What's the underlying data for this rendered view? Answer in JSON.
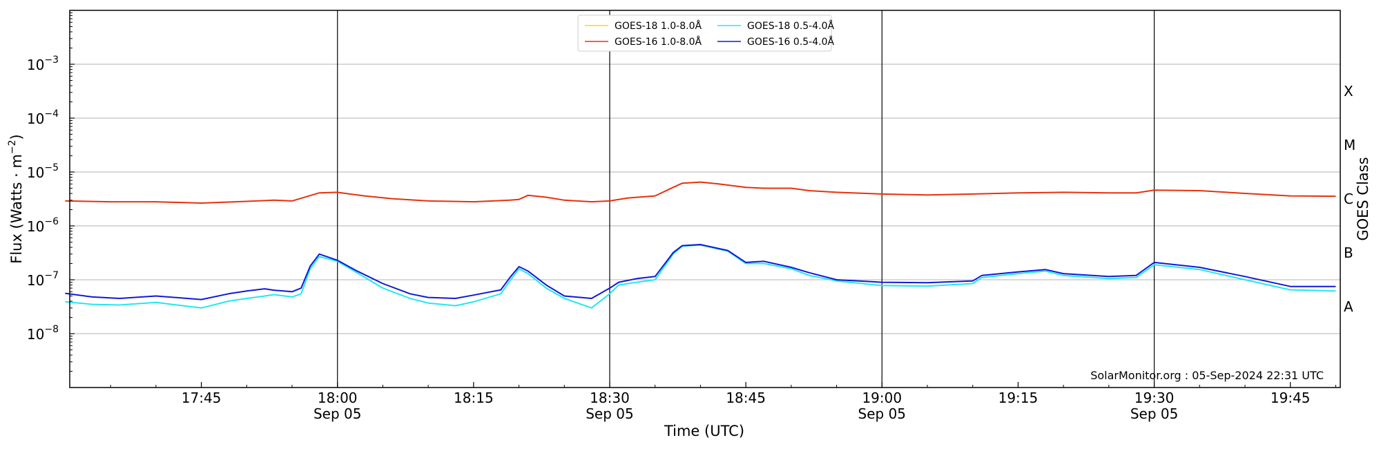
{
  "chart_data": {
    "type": "line",
    "title": "",
    "xlabel": "Time (UTC)",
    "ylabel": "Flux (Watts · m",
    "ylabel_sup": "−2",
    "ylabel_close": ")",
    "y2label": "GOES Class",
    "yscale": "log",
    "xlim": [
      "17:30:30",
      "19:50:30"
    ],
    "ylim": [
      1e-09,
      0.01
    ],
    "grid": "horizontal",
    "legend_position": "top-center",
    "x_ticks": [
      {
        "t": "17:45",
        "label": "17:45",
        "date": ""
      },
      {
        "t": "18:00",
        "label": "18:00",
        "date": "Sep 05",
        "vline": true
      },
      {
        "t": "18:15",
        "label": "18:15",
        "date": ""
      },
      {
        "t": "18:30",
        "label": "18:30",
        "date": "Sep 05",
        "vline": true
      },
      {
        "t": "18:45",
        "label": "18:45",
        "date": ""
      },
      {
        "t": "19:00",
        "label": "19:00",
        "date": "Sep 05",
        "vline": true
      },
      {
        "t": "19:15",
        "label": "19:15",
        "date": ""
      },
      {
        "t": "19:30",
        "label": "19:30",
        "date": "Sep 05",
        "vline": true
      },
      {
        "t": "19:45",
        "label": "19:45",
        "date": ""
      }
    ],
    "y_ticks": [
      {
        "exp": -8,
        "base": "10",
        "sup": "−8"
      },
      {
        "exp": -7,
        "base": "10",
        "sup": "−7"
      },
      {
        "exp": -6,
        "base": "10",
        "sup": "−6"
      },
      {
        "exp": -5,
        "base": "10",
        "sup": "−5"
      },
      {
        "exp": -4,
        "base": "10",
        "sup": "−4"
      },
      {
        "exp": -3,
        "base": "10",
        "sup": "−3"
      }
    ],
    "goes_classes": [
      {
        "label": "A",
        "exp": -7.5
      },
      {
        "label": "B",
        "exp": -6.5
      },
      {
        "label": "C",
        "exp": -5.5
      },
      {
        "label": "M",
        "exp": -4.5
      },
      {
        "label": "X",
        "exp": -3.5
      }
    ],
    "series": [
      {
        "name": "GOES-18 1.0-8.0Å",
        "color": "#ffd700",
        "x": [],
        "y": []
      },
      {
        "name": "GOES-16 1.0-8.0Å",
        "color": "#e8300a",
        "x": [
          "17:30",
          "17:35",
          "17:40",
          "17:45",
          "17:50",
          "17:53",
          "17:55",
          "17:58",
          "18:00",
          "18:03",
          "18:06",
          "18:10",
          "18:15",
          "18:19",
          "18:20",
          "18:21",
          "18:23",
          "18:25",
          "18:28",
          "18:30",
          "18:32",
          "18:35",
          "18:37",
          "18:38",
          "18:40",
          "18:42",
          "18:45",
          "18:47",
          "18:50",
          "18:52",
          "18:55",
          "19:00",
          "19:05",
          "19:10",
          "19:15",
          "19:20",
          "19:25",
          "19:28",
          "19:30",
          "19:35",
          "19:40",
          "19:45",
          "19:50"
        ],
        "y": [
          2.9e-06,
          2.8e-06,
          2.8e-06,
          2.65e-06,
          2.85e-06,
          3e-06,
          2.9e-06,
          4.1e-06,
          4.2e-06,
          3.6e-06,
          3.2e-06,
          2.9e-06,
          2.8e-06,
          3e-06,
          3.1e-06,
          3.7e-06,
          3.4e-06,
          3e-06,
          2.8e-06,
          2.9e-06,
          3.3e-06,
          3.6e-06,
          5.2e-06,
          6.2e-06,
          6.5e-06,
          6e-06,
          5.2e-06,
          5e-06,
          5e-06,
          4.5e-06,
          4.2e-06,
          3.9e-06,
          3.75e-06,
          3.9e-06,
          4.1e-06,
          4.2e-06,
          4.1e-06,
          4.1e-06,
          4.6e-06,
          4.5e-06,
          4e-06,
          3.6e-06,
          3.55e-06
        ]
      },
      {
        "name": "GOES-18 0.5-4.0Å",
        "color": "#20e8f0",
        "x": [
          "17:30",
          "17:33",
          "17:36",
          "17:40",
          "17:45",
          "17:48",
          "17:50",
          "17:52",
          "17:53",
          "17:55",
          "17:56",
          "17:57",
          "17:58",
          "18:00",
          "18:02",
          "18:05",
          "18:08",
          "18:10",
          "18:13",
          "18:15",
          "18:18",
          "18:19",
          "18:20",
          "18:21",
          "18:23",
          "18:25",
          "18:28",
          "18:30",
          "18:31",
          "18:33",
          "18:35",
          "18:37",
          "18:38",
          "18:40",
          "18:43",
          "18:45",
          "18:47",
          "18:50",
          "18:52",
          "18:55",
          "19:00",
          "19:05",
          "19:10",
          "19:11",
          "19:15",
          "19:18",
          "19:20",
          "19:25",
          "19:28",
          "19:30",
          "19:35",
          "19:40",
          "19:45",
          "19:50"
        ],
        "y": [
          3.9e-08,
          3.5e-08,
          3.4e-08,
          3.8e-08,
          3e-08,
          4e-08,
          4.5e-08,
          5e-08,
          5.3e-08,
          4.8e-08,
          5.5e-08,
          1.6e-07,
          2.7e-07,
          2.2e-07,
          1.4e-07,
          7e-08,
          4.5e-08,
          3.7e-08,
          3.3e-08,
          3.9e-08,
          5.5e-08,
          9.5e-08,
          1.6e-07,
          1.3e-07,
          7e-08,
          4.5e-08,
          3e-08,
          5.5e-08,
          8e-08,
          9e-08,
          1e-07,
          3e-07,
          4.2e-07,
          4.4e-07,
          3.4e-07,
          2e-07,
          2e-07,
          1.6e-07,
          1.2e-07,
          9.5e-08,
          7.8e-08,
          7.6e-08,
          8.5e-08,
          1.1e-07,
          1.3e-07,
          1.45e-07,
          1.2e-07,
          1.05e-07,
          1.1e-07,
          1.9e-07,
          1.55e-07,
          1e-07,
          6.5e-08,
          6.2e-08
        ]
      },
      {
        "name": "GOES-16 0.5-4.0Å",
        "color": "#1018d8",
        "x": [
          "17:30",
          "17:33",
          "17:36",
          "17:40",
          "17:45",
          "17:48",
          "17:50",
          "17:52",
          "17:53",
          "17:55",
          "17:56",
          "17:57",
          "17:58",
          "18:00",
          "18:02",
          "18:05",
          "18:08",
          "18:10",
          "18:13",
          "18:15",
          "18:18",
          "18:19",
          "18:20",
          "18:21",
          "18:23",
          "18:25",
          "18:28",
          "18:30",
          "18:31",
          "18:33",
          "18:35",
          "18:37",
          "18:38",
          "18:40",
          "18:43",
          "18:45",
          "18:47",
          "18:50",
          "18:52",
          "18:55",
          "19:00",
          "19:05",
          "19:10",
          "19:11",
          "19:15",
          "19:18",
          "19:20",
          "19:25",
          "19:28",
          "19:30",
          "19:35",
          "19:40",
          "19:45",
          "19:50"
        ],
        "y": [
          5.6e-08,
          4.8e-08,
          4.5e-08,
          5e-08,
          4.3e-08,
          5.5e-08,
          6.2e-08,
          6.8e-08,
          6.4e-08,
          6e-08,
          7e-08,
          1.8e-07,
          3e-07,
          2.3e-07,
          1.5e-07,
          8.5e-08,
          5.5e-08,
          4.7e-08,
          4.5e-08,
          5.2e-08,
          6.5e-08,
          1.1e-07,
          1.75e-07,
          1.45e-07,
          8e-08,
          5e-08,
          4.5e-08,
          7e-08,
          9e-08,
          1.05e-07,
          1.15e-07,
          3.2e-07,
          4.3e-07,
          4.5e-07,
          3.5e-07,
          2.1e-07,
          2.2e-07,
          1.7e-07,
          1.35e-07,
          1e-07,
          9e-08,
          8.8e-08,
          9.5e-08,
          1.2e-07,
          1.4e-07,
          1.55e-07,
          1.3e-07,
          1.15e-07,
          1.2e-07,
          2.1e-07,
          1.7e-07,
          1.15e-07,
          7.5e-08,
          7.5e-08
        ]
      }
    ],
    "annotation": "SolarMonitor.org : 05-Sep-2024 22:31 UTC"
  }
}
